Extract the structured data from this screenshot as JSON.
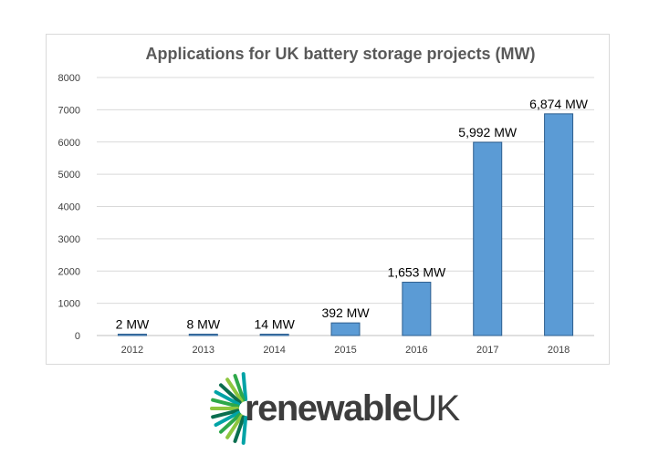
{
  "chart_data": {
    "type": "bar",
    "title": "Applications for UK battery storage projects (MW)",
    "xlabel": "",
    "ylabel": "",
    "categories": [
      "2012",
      "2013",
      "2014",
      "2015",
      "2016",
      "2017",
      "2018"
    ],
    "values": [
      2,
      8,
      14,
      392,
      1653,
      5992,
      6874
    ],
    "data_labels": [
      "2 MW",
      "8 MW",
      "14 MW",
      "392 MW",
      "1,653 MW",
      "5,992 MW",
      "6,874 MW"
    ],
    "ylim": [
      0,
      8000
    ],
    "yticks": [
      "0",
      "1000",
      "2000",
      "3000",
      "4000",
      "5000",
      "6000",
      "7000",
      "8000"
    ],
    "grid": true,
    "legend": "none",
    "colors": {
      "bar_fill": "#5b9bd5",
      "bar_stroke": "#2e5f8f",
      "title": "#595959"
    }
  },
  "logo": {
    "text_bold": "renewable",
    "text_regular": "UK",
    "colors": [
      "#00a3a6",
      "#2ea84a",
      "#8dc63f",
      "#0b6e4f"
    ]
  }
}
